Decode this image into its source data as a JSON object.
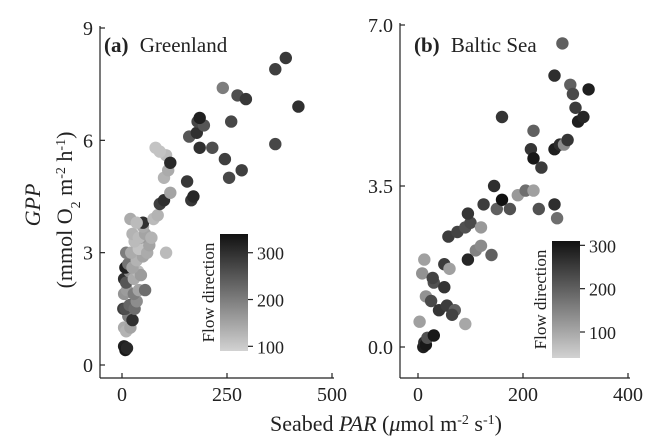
{
  "figure": {
    "shared_ylabel": {
      "italic": "GPP",
      "line2_html": "(mmol O<tspan baseline-shift=\"sub\" font-size=\"14\">2</tspan> m<tspan baseline-shift=\"super\" font-size=\"14\">-2</tspan> h<tspan baseline-shift=\"super\" font-size=\"14\">-1</tspan>)"
    },
    "shared_xlabel": {
      "prefix": "Seabed ",
      "italic": "PAR",
      "suffix_html": " (<tspan font-style=\"italic\">&#956;</tspan>mol m<tspan baseline-shift=\"super\" font-size=\"14\">-2</tspan> s<tspan baseline-shift=\"super\" font-size=\"14\">-1</tspan>)"
    }
  },
  "colors": {
    "low_flow": "#d2d2d2",
    "high_flow": "#111111",
    "axis": "#222222"
  },
  "chart_data": [
    {
      "type": "scatter",
      "panel_letter": "(a)",
      "title": "Greenland",
      "xlim": [
        0,
        500
      ],
      "ylim": [
        0,
        9
      ],
      "xticks": [
        0,
        250,
        500
      ],
      "yticks": [
        0,
        3,
        6,
        9
      ],
      "colorbar": {
        "label": "Flow direction",
        "range": [
          90,
          340
        ],
        "ticks": [
          100,
          200,
          300
        ]
      },
      "points": [
        {
          "x": 5,
          "y": 0.5,
          "c": 320
        },
        {
          "x": 8,
          "y": 0.4,
          "c": 330
        },
        {
          "x": 12,
          "y": 0.45,
          "c": 310
        },
        {
          "x": 5,
          "y": 1.0,
          "c": 140
        },
        {
          "x": 10,
          "y": 0.9,
          "c": 130
        },
        {
          "x": 15,
          "y": 1.3,
          "c": 200
        },
        {
          "x": 20,
          "y": 1.0,
          "c": 150
        },
        {
          "x": 3,
          "y": 1.5,
          "c": 280
        },
        {
          "x": 8,
          "y": 1.5,
          "c": 260
        },
        {
          "x": 18,
          "y": 1.6,
          "c": 230
        },
        {
          "x": 25,
          "y": 1.2,
          "c": 300
        },
        {
          "x": 30,
          "y": 1.5,
          "c": 220
        },
        {
          "x": 35,
          "y": 1.7,
          "c": 180
        },
        {
          "x": 5,
          "y": 1.9,
          "c": 170
        },
        {
          "x": 12,
          "y": 2.0,
          "c": 160
        },
        {
          "x": 28,
          "y": 1.9,
          "c": 200
        },
        {
          "x": 40,
          "y": 2.0,
          "c": 150
        },
        {
          "x": 55,
          "y": 2.0,
          "c": 220
        },
        {
          "x": 5,
          "y": 2.3,
          "c": 300
        },
        {
          "x": 10,
          "y": 2.2,
          "c": 250
        },
        {
          "x": 18,
          "y": 2.5,
          "c": 180
        },
        {
          "x": 28,
          "y": 2.3,
          "c": 140
        },
        {
          "x": 38,
          "y": 2.5,
          "c": 120
        },
        {
          "x": 45,
          "y": 2.4,
          "c": 160
        },
        {
          "x": 8,
          "y": 2.6,
          "c": 320
        },
        {
          "x": 15,
          "y": 2.7,
          "c": 210
        },
        {
          "x": 25,
          "y": 2.6,
          "c": 150
        },
        {
          "x": 35,
          "y": 2.8,
          "c": 130
        },
        {
          "x": 50,
          "y": 2.9,
          "c": 150
        },
        {
          "x": 10,
          "y": 3.0,
          "c": 200
        },
        {
          "x": 22,
          "y": 3.0,
          "c": 140
        },
        {
          "x": 40,
          "y": 3.1,
          "c": 110
        },
        {
          "x": 60,
          "y": 3.0,
          "c": 140
        },
        {
          "x": 65,
          "y": 3.2,
          "c": 150
        },
        {
          "x": 30,
          "y": 3.3,
          "c": 120
        },
        {
          "x": 45,
          "y": 3.4,
          "c": 160
        },
        {
          "x": 25,
          "y": 3.5,
          "c": 130
        },
        {
          "x": 40,
          "y": 3.4,
          "c": 120
        },
        {
          "x": 55,
          "y": 3.5,
          "c": 150
        },
        {
          "x": 70,
          "y": 3.4,
          "c": 130
        },
        {
          "x": 50,
          "y": 3.7,
          "c": 140
        },
        {
          "x": 50,
          "y": 3.8,
          "c": 300
        },
        {
          "x": 20,
          "y": 3.9,
          "c": 140
        },
        {
          "x": 35,
          "y": 3.8,
          "c": 120
        },
        {
          "x": 75,
          "y": 3.9,
          "c": 120
        },
        {
          "x": 85,
          "y": 4.0,
          "c": 130
        },
        {
          "x": 105,
          "y": 3.0,
          "c": 120
        },
        {
          "x": 90,
          "y": 4.3,
          "c": 280
        },
        {
          "x": 100,
          "y": 4.4,
          "c": 300
        },
        {
          "x": 115,
          "y": 4.6,
          "c": 150
        },
        {
          "x": 100,
          "y": 5.0,
          "c": 130
        },
        {
          "x": 110,
          "y": 5.2,
          "c": 140
        },
        {
          "x": 105,
          "y": 5.6,
          "c": 120
        },
        {
          "x": 90,
          "y": 5.7,
          "c": 110
        },
        {
          "x": 80,
          "y": 5.8,
          "c": 110
        },
        {
          "x": 115,
          "y": 5.4,
          "c": 310
        },
        {
          "x": 155,
          "y": 4.9,
          "c": 290
        },
        {
          "x": 165,
          "y": 4.4,
          "c": 290
        },
        {
          "x": 170,
          "y": 4.5,
          "c": 310
        },
        {
          "x": 160,
          "y": 6.1,
          "c": 250
        },
        {
          "x": 178,
          "y": 6.2,
          "c": 300
        },
        {
          "x": 180,
          "y": 6.5,
          "c": 270
        },
        {
          "x": 185,
          "y": 5.8,
          "c": 300
        },
        {
          "x": 195,
          "y": 6.4,
          "c": 250
        },
        {
          "x": 215,
          "y": 5.8,
          "c": 260
        },
        {
          "x": 185,
          "y": 6.6,
          "c": 320
        },
        {
          "x": 240,
          "y": 7.4,
          "c": 200
        },
        {
          "x": 245,
          "y": 5.5,
          "c": 280
        },
        {
          "x": 260,
          "y": 6.5,
          "c": 270
        },
        {
          "x": 275,
          "y": 7.2,
          "c": 260
        },
        {
          "x": 295,
          "y": 7.1,
          "c": 290
        },
        {
          "x": 255,
          "y": 5.0,
          "c": 270
        },
        {
          "x": 285,
          "y": 5.2,
          "c": 280
        },
        {
          "x": 365,
          "y": 5.9,
          "c": 270
        },
        {
          "x": 365,
          "y": 7.9,
          "c": 280
        },
        {
          "x": 390,
          "y": 8.2,
          "c": 290
        },
        {
          "x": 420,
          "y": 6.9,
          "c": 300
        }
      ]
    },
    {
      "type": "scatter",
      "panel_letter": "(b)",
      "title": "Baltic Sea",
      "xlim": [
        0,
        400
      ],
      "ylim": [
        0,
        7
      ],
      "xticks": [
        0,
        200,
        400
      ],
      "yticks": [
        0.0,
        3.5,
        7.0
      ],
      "ytick_labels": [
        "0.0",
        "3.5",
        "7.0"
      ],
      "colorbar": {
        "label": "Flow direction",
        "range": [
          40,
          310
        ],
        "ticks": [
          100,
          200,
          300
        ]
      },
      "points": [
        {
          "x": 10,
          "y": 0.0,
          "c": 290
        },
        {
          "x": 12,
          "y": 0.1,
          "c": 270
        },
        {
          "x": 15,
          "y": 0.05,
          "c": 300
        },
        {
          "x": 3,
          "y": 0.55,
          "c": 110
        },
        {
          "x": 18,
          "y": 0.2,
          "c": 220
        },
        {
          "x": 30,
          "y": 0.25,
          "c": 300
        },
        {
          "x": 15,
          "y": 1.1,
          "c": 130
        },
        {
          "x": 25,
          "y": 1.0,
          "c": 230
        },
        {
          "x": 40,
          "y": 0.8,
          "c": 260
        },
        {
          "x": 55,
          "y": 0.9,
          "c": 250
        },
        {
          "x": 70,
          "y": 0.8,
          "c": 200
        },
        {
          "x": 90,
          "y": 0.5,
          "c": 100
        },
        {
          "x": 65,
          "y": 0.7,
          "c": 240
        },
        {
          "x": 30,
          "y": 1.4,
          "c": 220
        },
        {
          "x": 50,
          "y": 1.3,
          "c": 260
        },
        {
          "x": 8,
          "y": 1.6,
          "c": 130
        },
        {
          "x": 28,
          "y": 1.5,
          "c": 240
        },
        {
          "x": 50,
          "y": 1.8,
          "c": 250
        },
        {
          "x": 60,
          "y": 1.7,
          "c": 110
        },
        {
          "x": 12,
          "y": 1.9,
          "c": 110
        },
        {
          "x": 95,
          "y": 1.9,
          "c": 280
        },
        {
          "x": 110,
          "y": 2.1,
          "c": 150
        },
        {
          "x": 120,
          "y": 2.2,
          "c": 140
        },
        {
          "x": 140,
          "y": 2.0,
          "c": 200
        },
        {
          "x": 58,
          "y": 2.4,
          "c": 250
        },
        {
          "x": 75,
          "y": 2.5,
          "c": 240
        },
        {
          "x": 90,
          "y": 2.6,
          "c": 220
        },
        {
          "x": 100,
          "y": 2.7,
          "c": 230
        },
        {
          "x": 120,
          "y": 2.6,
          "c": 120
        },
        {
          "x": 95,
          "y": 2.9,
          "c": 260
        },
        {
          "x": 125,
          "y": 3.1,
          "c": 250
        },
        {
          "x": 150,
          "y": 3.0,
          "c": 200
        },
        {
          "x": 160,
          "y": 3.2,
          "c": 310
        },
        {
          "x": 175,
          "y": 3.0,
          "c": 220
        },
        {
          "x": 190,
          "y": 3.3,
          "c": 120
        },
        {
          "x": 205,
          "y": 3.4,
          "c": 180
        },
        {
          "x": 220,
          "y": 3.4,
          "c": 110
        },
        {
          "x": 230,
          "y": 3.0,
          "c": 220
        },
        {
          "x": 145,
          "y": 3.5,
          "c": 270
        },
        {
          "x": 160,
          "y": 5.0,
          "c": 260
        },
        {
          "x": 215,
          "y": 4.3,
          "c": 260
        },
        {
          "x": 220,
          "y": 4.7,
          "c": 200
        },
        {
          "x": 220,
          "y": 4.1,
          "c": 300
        },
        {
          "x": 235,
          "y": 3.9,
          "c": 250
        },
        {
          "x": 260,
          "y": 4.3,
          "c": 290
        },
        {
          "x": 265,
          "y": 2.8,
          "c": 180
        },
        {
          "x": 260,
          "y": 3.1,
          "c": 270
        },
        {
          "x": 270,
          "y": 4.4,
          "c": 270
        },
        {
          "x": 278,
          "y": 4.4,
          "c": 140
        },
        {
          "x": 260,
          "y": 5.9,
          "c": 270
        },
        {
          "x": 275,
          "y": 6.6,
          "c": 200
        },
        {
          "x": 290,
          "y": 5.7,
          "c": 200
        },
        {
          "x": 295,
          "y": 5.5,
          "c": 230
        },
        {
          "x": 300,
          "y": 5.2,
          "c": 250
        },
        {
          "x": 305,
          "y": 4.9,
          "c": 290
        },
        {
          "x": 315,
          "y": 5.0,
          "c": 280
        },
        {
          "x": 325,
          "y": 5.6,
          "c": 290
        },
        {
          "x": 285,
          "y": 4.5,
          "c": 260
        }
      ]
    }
  ]
}
